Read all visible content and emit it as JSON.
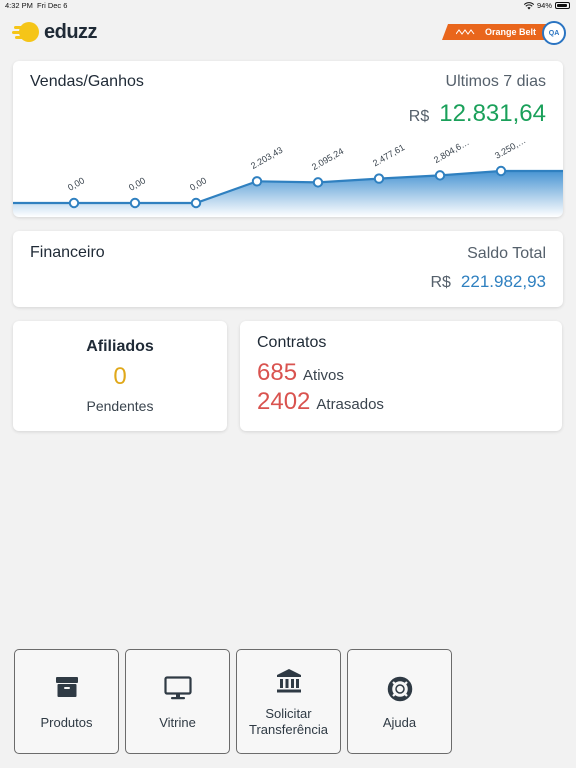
{
  "status_bar": {
    "time": "4:32 PM",
    "date": "Fri Dec 6",
    "battery": "94%",
    "battery_level": 0.94
  },
  "header": {
    "brand": "eduzz",
    "belt_label": "Orange Belt",
    "seal_text": "QA"
  },
  "colors": {
    "accent_orange": "#e9661c",
    "sales_green": "#1aa05a",
    "balance_blue": "#2f80c0",
    "affiliate_yellow": "#e0a81a",
    "contract_red": "#d9534f"
  },
  "sales": {
    "title": "Vendas/Ganhos",
    "period": "Ultimos 7 dias",
    "currency": "R$",
    "value": "12.831,64",
    "chart_points": [
      {
        "label": "0,00",
        "value": 0
      },
      {
        "label": "0,00",
        "value": 0
      },
      {
        "label": "0,00",
        "value": 0
      },
      {
        "label": "2.203,43",
        "value": 2203.43
      },
      {
        "label": "2.095,24",
        "value": 2095.24
      },
      {
        "label": "2.477,61",
        "value": 2477.61
      },
      {
        "label": "2.804,6…",
        "value": 2804.6
      },
      {
        "label": "3.250,…",
        "value": 3250
      }
    ]
  },
  "financeiro": {
    "title": "Financeiro",
    "label": "Saldo Total",
    "currency": "R$",
    "value": "221.982,93"
  },
  "afiliados": {
    "title": "Afiliados",
    "count": "0",
    "label": "Pendentes"
  },
  "contratos": {
    "title": "Contratos",
    "active_count": "685",
    "active_label": "Ativos",
    "overdue_count": "2402",
    "overdue_label": "Atrasados"
  },
  "nav": {
    "produtos": "Produtos",
    "vitrine": "Vitrine",
    "transfer_line1": "Solicitar",
    "transfer_line2": "Transferência",
    "ajuda": "Ajuda"
  }
}
